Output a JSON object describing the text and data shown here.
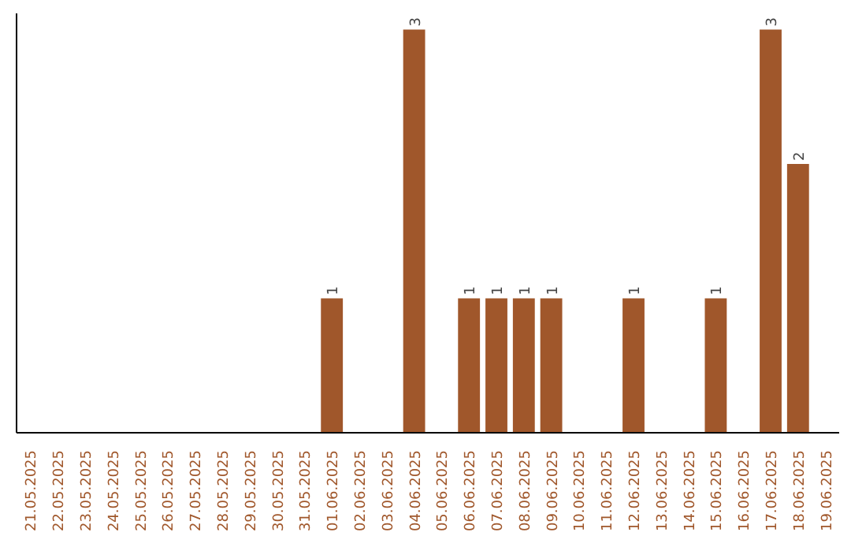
{
  "chart_data": {
    "type": "bar",
    "categories": [
      "21.05.2025",
      "22.05.2025",
      "23.05.2025",
      "24.05.2025",
      "25.05.2025",
      "26.05.2025",
      "27.05.2025",
      "28.05.2025",
      "29.05.2025",
      "30.05.2025",
      "31.05.2025",
      "01.06.2025",
      "02.06.2025",
      "03.06.2025",
      "04.06.2025",
      "05.06.2025",
      "06.06.2025",
      "07.06.2025",
      "08.06.2025",
      "09.06.2025",
      "10.06.2025",
      "11.06.2025",
      "12.06.2025",
      "13.06.2025",
      "14.06.2025",
      "15.06.2025",
      "16.06.2025",
      "17.06.2025",
      "18.06.2025",
      "19.06.2025"
    ],
    "values": [
      0,
      0,
      0,
      0,
      0,
      0,
      0,
      0,
      0,
      0,
      0,
      1,
      0,
      0,
      3,
      0,
      1,
      1,
      1,
      1,
      0,
      0,
      1,
      0,
      0,
      1,
      0,
      3,
      2,
      0
    ],
    "value_labels": [
      null,
      null,
      null,
      null,
      null,
      null,
      null,
      null,
      null,
      null,
      null,
      "1",
      null,
      null,
      "3",
      null,
      "1",
      "1",
      "1",
      "1",
      null,
      null,
      "1",
      null,
      null,
      "1",
      null,
      "3",
      "2",
      null
    ],
    "color": "#a0572b",
    "grid": false
  }
}
